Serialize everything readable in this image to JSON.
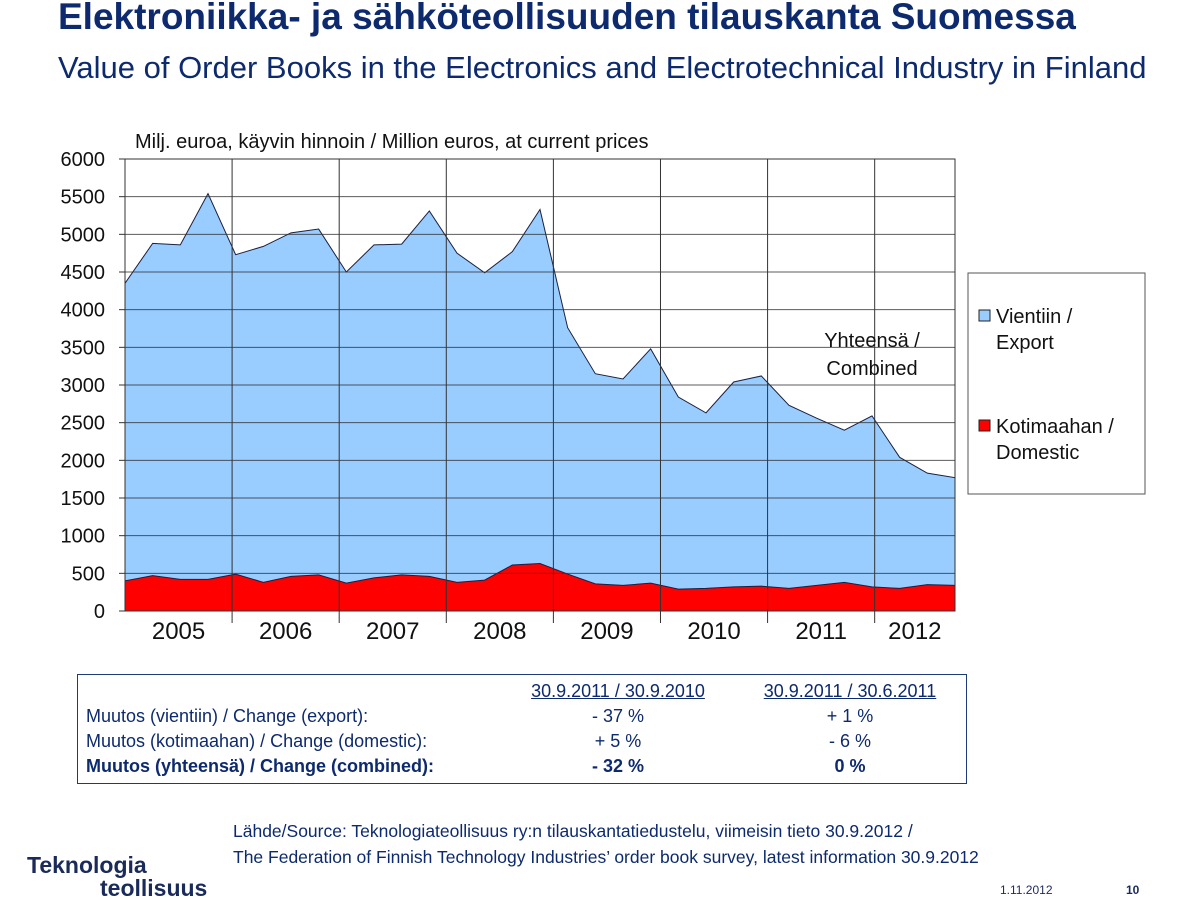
{
  "header": {
    "title": "Elektroniikka- ja sähköteollisuuden tilauskanta Suomessa",
    "subtitle": "Value of Order Books in the Electronics and Electrotechnical Industry in Finland"
  },
  "chart_data": {
    "type": "stacked_area",
    "y_label": "Milj. euroa, käyvin hinnoin / Million euros, at current prices",
    "year_labels": [
      "2005",
      "2006",
      "2007",
      "2008",
      "2009",
      "2010",
      "2011",
      "2012"
    ],
    "series": [
      {
        "name": "Kotimaahan / Domestic",
        "color": "#ff0000",
        "values": [
          400,
          470,
          420,
          420,
          490,
          380,
          460,
          480,
          370,
          440,
          480,
          460,
          380,
          410,
          610,
          630,
          490,
          360,
          340,
          370,
          290,
          300,
          320,
          330,
          300,
          340,
          380,
          320,
          300,
          350,
          340
        ]
      },
      {
        "name": "Vientiin / Export",
        "color": "#99ccff",
        "values": [
          3950,
          4410,
          4440,
          5120,
          4240,
          4460,
          4560,
          4590,
          4130,
          4420,
          4390,
          4850,
          4370,
          4080,
          4160,
          4700,
          3270,
          2790,
          2740,
          3110,
          2550,
          2330,
          2720,
          2790,
          2430,
          2220,
          2020,
          2270,
          1740,
          1480,
          1430
        ]
      }
    ],
    "ylim": [
      0,
      6000
    ],
    "yticks": [
      0,
      500,
      1000,
      1500,
      2000,
      2500,
      3000,
      3500,
      4000,
      4500,
      5000,
      5500,
      6000
    ],
    "grid": true,
    "annotation": "Yhteensä / Combined"
  },
  "table": {
    "headers": [
      "30.9.2011 / 30.9.2010",
      "30.9.2011 / 30.6.2011"
    ],
    "rows": [
      [
        "Muutos (vientiin) / Change (export):",
        "- 37 %",
        "+ 1 %"
      ],
      [
        "Muutos (kotimaahan) / Change (domestic):",
        "+ 5 %",
        "- 6 %"
      ],
      [
        "Muutos (yhteensä) / Change (combined):",
        "- 32 %",
        "0 %"
      ]
    ]
  },
  "source": [
    "Lähde/Source: Teknologiateollisuus ry:n tilauskantatiedustelu, viimeisin tieto 30.9.2012 /",
    "The Federation of Finnish Technology Industries’ order book survey, latest information 30.9.2012"
  ],
  "footer": {
    "logo": [
      "Teknologia",
      "teollisuus"
    ],
    "date": "1.11.2012",
    "page": "10"
  }
}
